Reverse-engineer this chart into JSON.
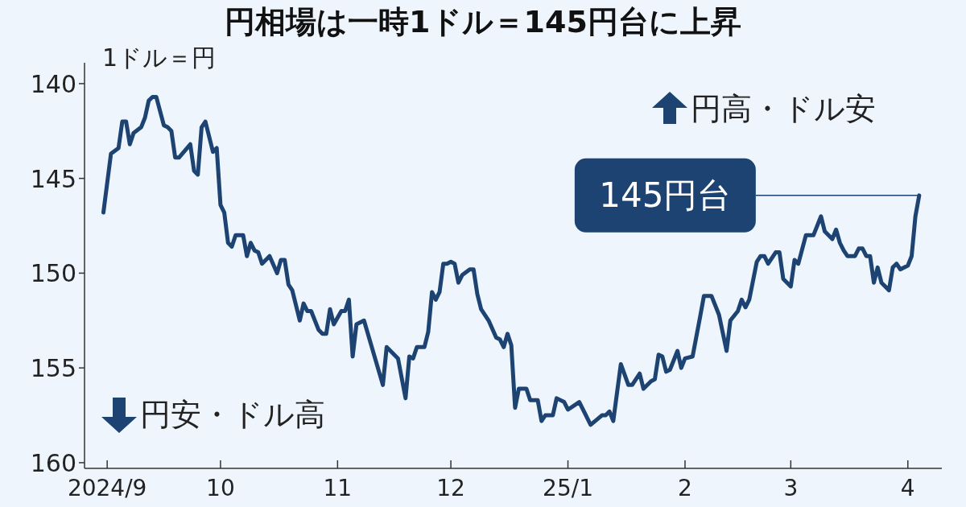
{
  "chart_data": {
    "type": "line",
    "title": "円相場は一時1ドル＝145円台に上昇",
    "ylabel": "1ドル＝円",
    "annotations": [
      "円高・ドル安",
      "円安・ドル高",
      "145円台"
    ],
    "xlim": [
      "2024-08-26",
      "2025-04-10"
    ],
    "xticks": [
      {
        "value": "2024-09-01",
        "label": "2024/9"
      },
      {
        "value": "2024-10-01",
        "label": "10"
      },
      {
        "value": "2024-11-01",
        "label": "11"
      },
      {
        "value": "2024-12-01",
        "label": "12"
      },
      {
        "value": "2025-01-01",
        "label": "25/1"
      },
      {
        "value": "2025-02-01",
        "label": "2"
      },
      {
        "value": "2025-03-01",
        "label": "3"
      },
      {
        "value": "2025-04-01",
        "label": "4"
      }
    ],
    "ylim": [
      160.3,
      138.9
    ],
    "yticks": [
      140,
      145,
      150,
      155,
      160
    ],
    "series": [
      {
        "color": "#1d4373",
        "x": [
          "2024-08-31",
          "2024-09-02",
          "2024-09-04",
          "2024-09-05",
          "2024-09-06",
          "2024-09-07",
          "2024-09-08",
          "2024-09-10",
          "2024-09-11",
          "2024-09-12",
          "2024-09-13",
          "2024-09-14",
          "2024-09-16",
          "2024-09-17",
          "2024-09-18",
          "2024-09-19",
          "2024-09-20",
          "2024-09-23",
          "2024-09-24",
          "2024-09-25",
          "2024-09-26",
          "2024-09-27",
          "2024-09-29",
          "2024-09-30",
          "2024-10-01",
          "2024-10-02",
          "2024-10-03",
          "2024-10-04",
          "2024-10-05",
          "2024-10-07",
          "2024-10-08",
          "2024-10-09",
          "2024-10-10",
          "2024-10-11",
          "2024-10-12",
          "2024-10-14",
          "2024-10-16",
          "2024-10-17",
          "2024-10-18",
          "2024-10-19",
          "2024-10-20",
          "2024-10-22",
          "2024-10-23",
          "2024-10-24",
          "2024-10-25",
          "2024-10-27",
          "2024-10-28",
          "2024-10-29",
          "2024-10-30",
          "2024-10-31",
          "2024-11-02",
          "2024-11-03",
          "2024-11-04",
          "2024-11-05",
          "2024-11-06",
          "2024-11-08",
          "2024-11-13",
          "2024-11-14",
          "2024-11-17",
          "2024-11-19",
          "2024-11-20",
          "2024-11-21",
          "2024-11-22",
          "2024-11-24",
          "2024-11-25",
          "2024-11-26",
          "2024-11-27",
          "2024-11-28",
          "2024-11-29",
          "2024-11-30",
          "2024-12-01",
          "2024-12-02",
          "2024-12-03",
          "2024-12-04",
          "2024-12-06",
          "2024-12-07",
          "2024-12-08",
          "2024-12-09",
          "2024-12-11",
          "2024-12-13",
          "2024-12-14",
          "2024-12-15",
          "2024-12-16",
          "2024-12-17",
          "2024-12-18",
          "2024-12-19",
          "2024-12-21",
          "2024-12-22",
          "2024-12-24",
          "2024-12-25",
          "2024-12-26",
          "2024-12-28",
          "2024-12-29",
          "2024-12-31",
          "2025-01-01",
          "2025-01-04",
          "2025-01-07",
          "2025-01-10",
          "2025-01-11",
          "2025-01-12",
          "2025-01-13",
          "2025-01-15",
          "2025-01-17",
          "2025-01-18",
          "2025-01-20",
          "2025-01-21",
          "2025-01-23",
          "2025-01-24",
          "2025-01-25",
          "2025-01-26",
          "2025-01-27",
          "2025-01-28",
          "2025-01-30",
          "2025-01-31",
          "2025-02-01",
          "2025-02-03",
          "2025-02-05",
          "2025-02-06",
          "2025-02-08",
          "2025-02-10",
          "2025-02-12",
          "2025-02-13",
          "2025-02-15",
          "2025-02-16",
          "2025-02-17",
          "2025-02-18",
          "2025-02-20",
          "2025-02-21",
          "2025-02-22",
          "2025-02-23",
          "2025-02-25",
          "2025-02-26",
          "2025-02-27",
          "2025-03-01",
          "2025-03-02",
          "2025-03-03",
          "2025-03-05",
          "2025-03-07",
          "2025-03-09",
          "2025-03-10",
          "2025-03-12",
          "2025-03-13",
          "2025-03-14",
          "2025-03-15",
          "2025-03-16",
          "2025-03-18",
          "2025-03-19",
          "2025-03-20",
          "2025-03-21",
          "2025-03-22",
          "2025-03-23",
          "2025-03-24",
          "2025-03-25",
          "2025-03-27",
          "2025-03-28",
          "2025-03-29",
          "2025-03-30",
          "2025-04-01",
          "2025-04-02",
          "2025-04-03",
          "2025-04-04"
        ],
        "values": [
          146.8,
          143.7,
          143.4,
          142.0,
          142.0,
          143.2,
          142.6,
          142.3,
          141.8,
          140.9,
          140.7,
          140.7,
          142.2,
          142.3,
          142.5,
          143.9,
          143.9,
          143.2,
          144.6,
          144.8,
          142.3,
          142.0,
          143.6,
          143.4,
          146.4,
          146.8,
          148.4,
          148.6,
          148.0,
          148.0,
          149.1,
          148.4,
          148.8,
          148.9,
          149.5,
          149.1,
          150.0,
          149.3,
          149.3,
          150.6,
          150.9,
          152.5,
          151.6,
          152.0,
          152.0,
          153.0,
          153.2,
          153.2,
          151.9,
          152.7,
          152.0,
          152.0,
          151.4,
          154.4,
          152.7,
          152.5,
          155.9,
          153.9,
          154.5,
          156.6,
          154.4,
          154.5,
          153.9,
          153.9,
          153.1,
          151.0,
          151.4,
          151.0,
          149.5,
          149.5,
          149.4,
          149.5,
          150.5,
          150.1,
          149.8,
          149.8,
          151.1,
          151.9,
          152.5,
          153.4,
          153.5,
          153.9,
          153.2,
          153.8,
          157.1,
          156.1,
          156.1,
          156.7,
          156.7,
          157.8,
          157.5,
          157.5,
          156.6,
          156.8,
          157.2,
          156.8,
          158.0,
          157.5,
          157.5,
          157.3,
          157.8,
          154.8,
          155.9,
          155.9,
          155.3,
          156.1,
          155.7,
          155.6,
          154.3,
          154.4,
          155.2,
          155.1,
          154.1,
          155.0,
          154.5,
          154.4,
          152.3,
          151.2,
          151.2,
          152.2,
          154.1,
          152.5,
          152.0,
          151.4,
          151.8,
          151.4,
          149.4,
          149.1,
          149.1,
          149.5,
          148.9,
          148.9,
          150.3,
          150.7,
          149.3,
          149.5,
          148.0,
          148.0,
          147.0,
          147.8,
          148.2,
          147.7,
          148.4,
          148.8,
          149.1,
          149.1,
          148.7,
          148.7,
          149.1,
          149.1,
          150.5,
          149.7,
          150.5,
          150.9,
          149.7,
          149.5,
          149.8,
          149.6,
          149.1,
          147.0,
          145.9
        ]
      }
    ]
  }
}
